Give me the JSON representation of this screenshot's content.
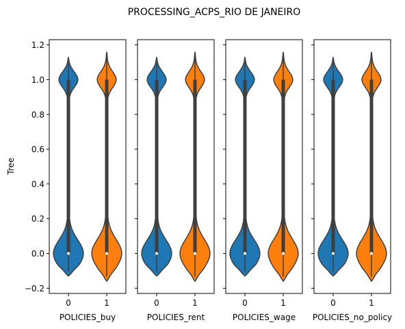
{
  "figure": {
    "title": "PROCESSING_ACPS_RIO DE JANEIRO",
    "ylabel": "Tree"
  },
  "chart_data": [
    {
      "type": "violin",
      "xlabel": "POLICIES_buy",
      "categories": [
        "0",
        "1"
      ],
      "series": [
        {
          "category": "0",
          "color": "#1f77b4",
          "ymin": -0.13,
          "ymax": 1.13,
          "lower_mode": 0.0,
          "upper_mode": 1.0,
          "q1": 0.0,
          "median": 0.0,
          "q3": 1.0
        },
        {
          "category": "1",
          "color": "#ff7f0e",
          "ymin": -0.16,
          "ymax": 1.16,
          "lower_mode": 0.0,
          "upper_mode": 1.0,
          "q1": 0.0,
          "median": 0.0,
          "q3": 1.0
        }
      ]
    },
    {
      "type": "violin",
      "xlabel": "POLICIES_rent",
      "categories": [
        "0",
        "1"
      ],
      "series": [
        {
          "category": "0",
          "color": "#1f77b4",
          "ymin": -0.13,
          "ymax": 1.13,
          "lower_mode": 0.0,
          "upper_mode": 1.0,
          "q1": 0.0,
          "median": 0.0,
          "q3": 1.0
        },
        {
          "category": "1",
          "color": "#ff7f0e",
          "ymin": -0.16,
          "ymax": 1.16,
          "lower_mode": 0.0,
          "upper_mode": 1.0,
          "q1": 0.0,
          "median": 0.0,
          "q3": 1.0
        }
      ]
    },
    {
      "type": "violin",
      "xlabel": "POLICIES_wage",
      "categories": [
        "0",
        "1"
      ],
      "series": [
        {
          "category": "0",
          "color": "#1f77b4",
          "ymin": -0.13,
          "ymax": 1.13,
          "lower_mode": 0.0,
          "upper_mode": 1.0,
          "q1": 0.0,
          "median": 0.0,
          "q3": 1.0
        },
        {
          "category": "1",
          "color": "#ff7f0e",
          "ymin": -0.16,
          "ymax": 1.16,
          "lower_mode": 0.0,
          "upper_mode": 1.0,
          "q1": 0.0,
          "median": 0.0,
          "q3": 1.0
        }
      ]
    },
    {
      "type": "violin",
      "xlabel": "POLICIES_no_policy",
      "categories": [
        "0",
        "1"
      ],
      "series": [
        {
          "category": "0",
          "color": "#1f77b4",
          "ymin": -0.13,
          "ymax": 1.13,
          "lower_mode": 0.0,
          "upper_mode": 1.0,
          "q1": 0.0,
          "median": 0.0,
          "q3": 1.0
        },
        {
          "category": "1",
          "color": "#ff7f0e",
          "ymin": -0.16,
          "ymax": 1.16,
          "lower_mode": 0.0,
          "upper_mode": 1.0,
          "q1": 0.0,
          "median": 0.0,
          "q3": 1.0
        }
      ]
    }
  ],
  "y_axis": {
    "ylim": [
      -0.23,
      1.23
    ],
    "ticks": [
      "−0.2",
      "0.0",
      "0.2",
      "0.4",
      "0.6",
      "0.8",
      "1.0",
      "1.2"
    ],
    "tick_values": [
      -0.2,
      0.0,
      0.2,
      0.4,
      0.6,
      0.8,
      1.0,
      1.2
    ],
    "shared": true,
    "grid": false
  },
  "style": {
    "edge_color": "#3f3f3f",
    "median_color": "#ffffff",
    "axis_color": "#000000"
  }
}
